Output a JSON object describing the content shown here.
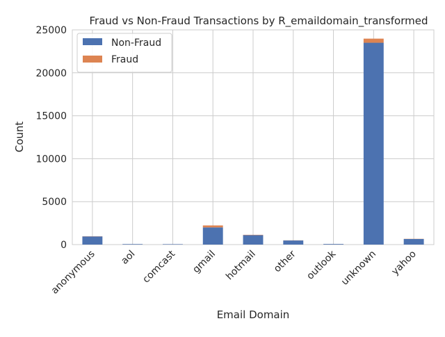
{
  "chart_data": {
    "type": "bar",
    "stacked": true,
    "title": "Fraud vs Non-Fraud Transactions by R_emaildomain_transformed",
    "xlabel": "Email Domain",
    "ylabel": "Count",
    "categories": [
      "anonymous",
      "aol",
      "comcast",
      "gmail",
      "hotmail",
      "other",
      "outlook",
      "unknown",
      "yahoo"
    ],
    "series": [
      {
        "name": "Non-Fraud",
        "values": [
          950,
          60,
          50,
          2000,
          1100,
          480,
          70,
          23500,
          650
        ],
        "color": "#4c72b0"
      },
      {
        "name": "Fraud",
        "values": [
          20,
          2,
          2,
          230,
          40,
          15,
          3,
          480,
          20
        ],
        "color": "#dd8452"
      }
    ],
    "ylim": [
      0,
      25000
    ],
    "yticks": [
      0,
      5000,
      10000,
      15000,
      20000,
      25000
    ],
    "grid": true,
    "legend_position": "upper-left",
    "xtick_rotation_deg": 45
  }
}
